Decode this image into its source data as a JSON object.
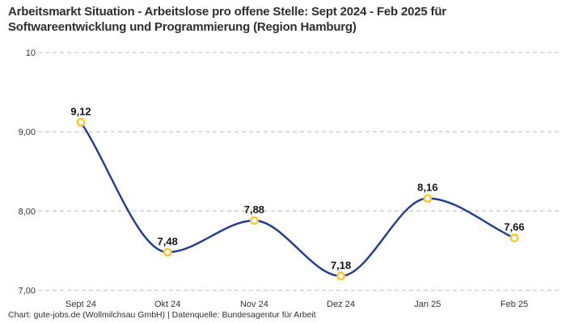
{
  "title": {
    "line1": "Arbeitsmarkt Situation - Arbeitslose pro offene Stelle: Sept 2024 - Feb 2025 für",
    "line2": "Softwareentwicklung und Programmierung (Region Hamburg)"
  },
  "footer": {
    "credit": "Chart: gute-jobs.de (Wollmilchsau GmbH) | Datenquelle: Bundesagentur für Arbeit"
  },
  "chart_data": {
    "type": "line",
    "title": "Arbeitsmarkt Situation - Arbeitslose pro offene Stelle: Sept 2024 - Feb 2025 für Softwareentwicklung und Programmierung (Region Hamburg)",
    "categories": [
      "Sept 24",
      "Okt 24",
      "Nov 24",
      "Dez 24",
      "Jan 25",
      "Feb 25"
    ],
    "values": [
      9.12,
      7.48,
      7.88,
      7.18,
      8.16,
      7.66
    ],
    "point_labels": [
      "9,12",
      "7,48",
      "7,88",
      "7,18",
      "8,16",
      "7,66"
    ],
    "y_ticks": [
      {
        "value": 10,
        "label": "10"
      },
      {
        "value": 9,
        "label": "9,00"
      },
      {
        "value": 8,
        "label": "8,00"
      },
      {
        "value": 7,
        "label": "7,00"
      }
    ],
    "ylim": [
      7,
      10
    ],
    "xlabel": "",
    "ylabel": "",
    "grid": "horizontal-dashed",
    "legend": "none",
    "curve": "monotone",
    "line_color": "#1e3a98",
    "marker_color": "#ffc52b",
    "marker_fill": "#ffffff",
    "grid_color": "#cbcbcb",
    "tick_label_color": "#333333",
    "point_label_color": "#141414"
  }
}
